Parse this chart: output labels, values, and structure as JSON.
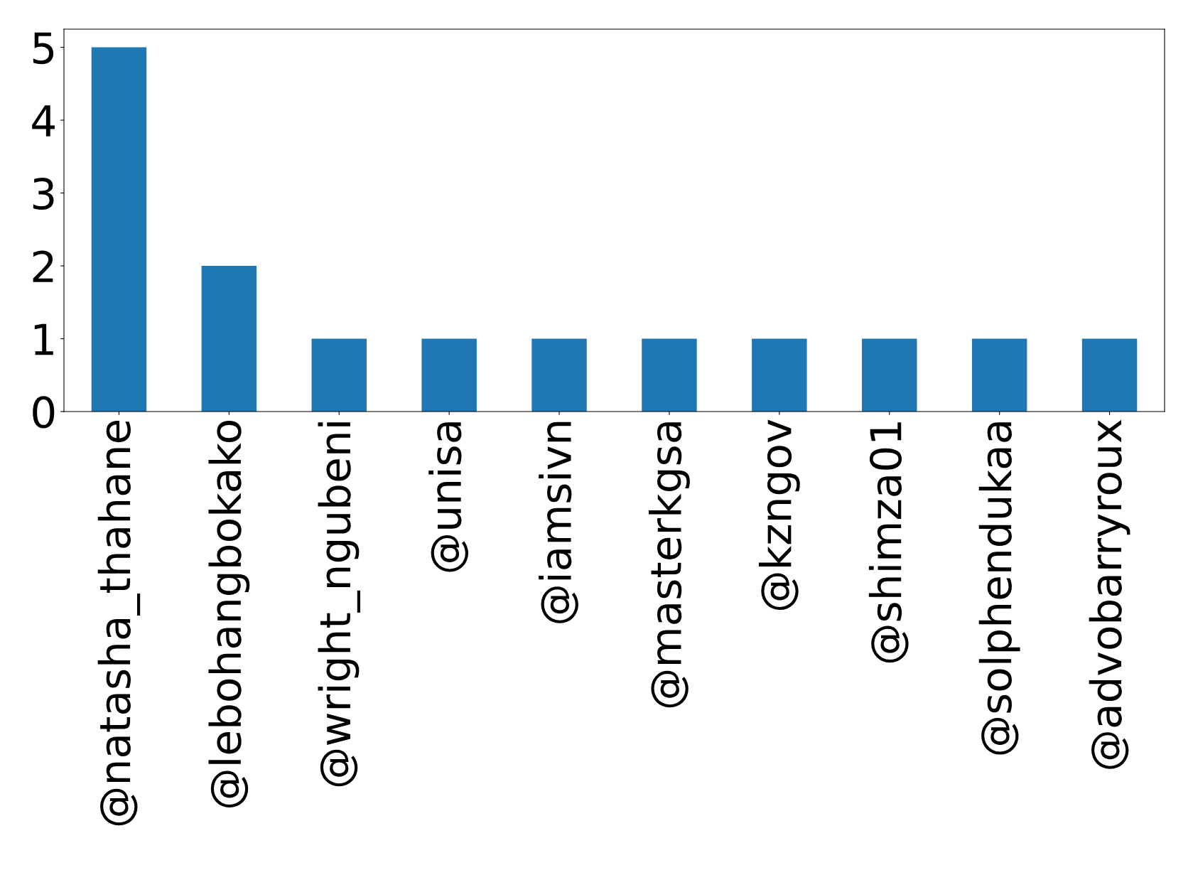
{
  "chart_data": {
    "type": "bar",
    "categories": [
      "@natasha_thahane",
      "@lebohangbokako",
      "@wright_ngubeni",
      "@unisa",
      "@iamsivn",
      "@masterkgsa",
      "@kzngov",
      "@shimza01",
      "@solphendukaa",
      "@advobarryroux"
    ],
    "values": [
      5,
      2,
      1,
      1,
      1,
      1,
      1,
      1,
      1,
      1
    ],
    "color": "#1f77b4",
    "ylim": [
      0,
      5.25
    ],
    "yticks": [
      0,
      1,
      2,
      3,
      4,
      5
    ],
    "grid": false
  }
}
